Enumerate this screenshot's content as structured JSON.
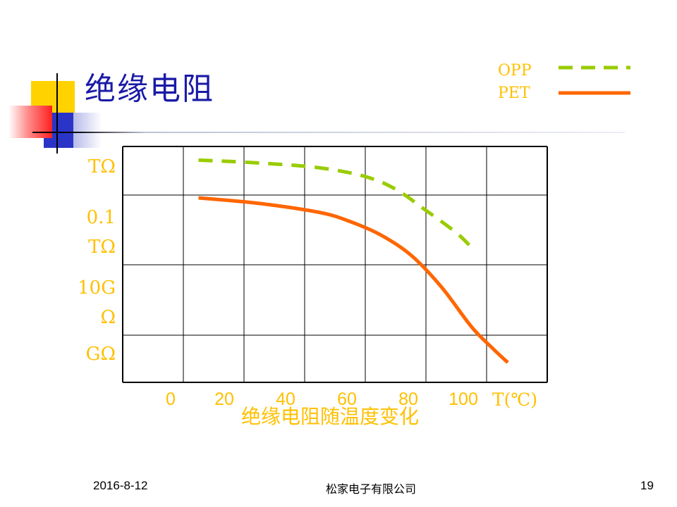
{
  "slide": {
    "title": "绝缘电阻",
    "caption": "绝缘电阻随温度变化",
    "footer_date": "2016-8-12",
    "footer_company": "松家电子有限公司",
    "page_number": "19"
  },
  "colors": {
    "title": "#1a1aa6",
    "label": "#ffc000",
    "opp": "#99cc00",
    "pet": "#ff6600",
    "grid": "#000000"
  },
  "chart_data": {
    "type": "line",
    "title": "绝缘电阻",
    "xlabel": "T(℃)",
    "ylabel": "",
    "x_ticks": [
      "0",
      "20",
      "40",
      "60",
      "80",
      "100"
    ],
    "y_tick_labels": [
      "TΩ",
      "0.1 TΩ",
      "10G Ω",
      "GΩ"
    ],
    "xlim": [
      -20,
      120
    ],
    "ylim_levels": [
      0,
      4
    ],
    "grid": true,
    "legend_placement": "top-right",
    "series": [
      {
        "name": "OPP",
        "style": "dashed",
        "color": "#99cc00",
        "points": [
          [
            5,
            3.72
          ],
          [
            25,
            3.66
          ],
          [
            45,
            3.56
          ],
          [
            60,
            3.38
          ],
          [
            70,
            3.12
          ],
          [
            80,
            2.78
          ],
          [
            90,
            2.46
          ],
          [
            95,
            2.25
          ]
        ]
      },
      {
        "name": "PET",
        "style": "solid",
        "color": "#ff6600",
        "points": [
          [
            5,
            2.96
          ],
          [
            25,
            2.88
          ],
          [
            45,
            2.75
          ],
          [
            55,
            2.62
          ],
          [
            65,
            2.43
          ],
          [
            75,
            2.14
          ],
          [
            85,
            1.69
          ],
          [
            95,
            1.12
          ],
          [
            102,
            0.72
          ],
          [
            107,
            0.42
          ]
        ]
      }
    ]
  }
}
